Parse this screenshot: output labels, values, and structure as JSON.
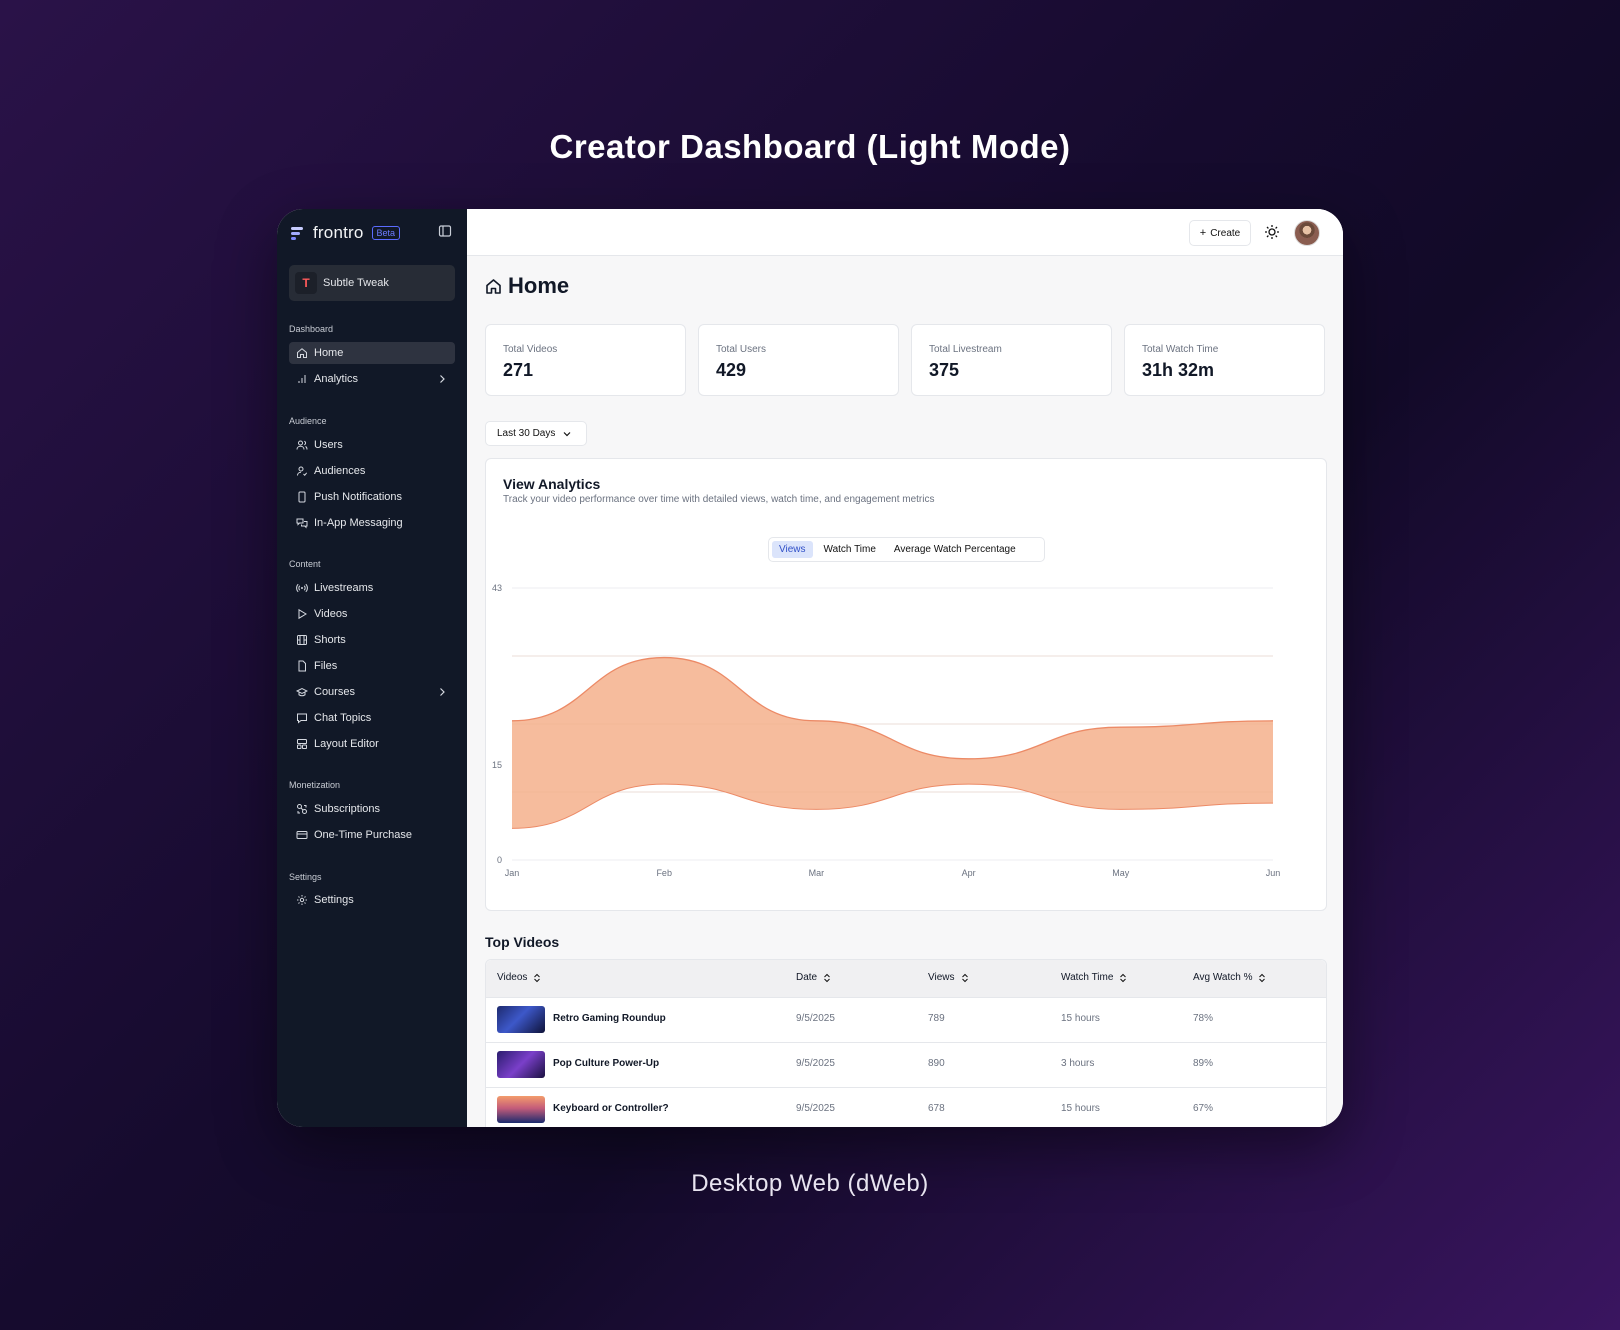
{
  "page": {
    "title": "Creator Dashboard (Light Mode)",
    "caption": "Desktop Web (dWeb)"
  },
  "sidebar": {
    "brand": "frontro",
    "beta": "Beta",
    "workspace": {
      "initial": "T",
      "name": "Subtle Tweak"
    },
    "sections": [
      {
        "label": "Dashboard",
        "items": [
          {
            "label": "Home",
            "icon": "home-icon",
            "active": true
          },
          {
            "label": "Analytics",
            "icon": "bar-chart-icon",
            "chevron": true
          }
        ]
      },
      {
        "label": "Audience",
        "items": [
          {
            "label": "Users",
            "icon": "users-icon"
          },
          {
            "label": "Audiences",
            "icon": "user-check-icon"
          },
          {
            "label": "Push Notifications",
            "icon": "phone-icon"
          },
          {
            "label": "In-App Messaging",
            "icon": "messages-icon"
          }
        ]
      },
      {
        "label": "Content",
        "items": [
          {
            "label": "Livestreams",
            "icon": "broadcast-icon"
          },
          {
            "label": "Videos",
            "icon": "play-icon"
          },
          {
            "label": "Shorts",
            "icon": "film-icon"
          },
          {
            "label": "Files",
            "icon": "file-icon"
          },
          {
            "label": "Courses",
            "icon": "graduation-cap-icon",
            "chevron": true
          },
          {
            "label": "Chat Topics",
            "icon": "chat-icon"
          },
          {
            "label": "Layout Editor",
            "icon": "layout-icon"
          }
        ]
      },
      {
        "label": "Monetization",
        "items": [
          {
            "label": "Subscriptions",
            "icon": "subscriptions-icon"
          },
          {
            "label": "One-Time Purchase",
            "icon": "credit-card-icon"
          }
        ]
      },
      {
        "label": "Settings",
        "items": [
          {
            "label": "Settings",
            "icon": "gear-icon"
          }
        ]
      }
    ]
  },
  "topbar": {
    "create_label": "Create"
  },
  "main": {
    "title": "Home",
    "stats": [
      {
        "label": "Total Videos",
        "value": "271"
      },
      {
        "label": "Total Users",
        "value": "429"
      },
      {
        "label": "Total Livestream",
        "value": "375"
      },
      {
        "label": "Total Watch Time",
        "value": "31h 32m"
      }
    ],
    "range": "Last 30 Days",
    "analytics": {
      "title": "View Analytics",
      "subtitle": "Track your video performance over time with detailed views, watch time, and engagement metrics",
      "tabs": [
        "Views",
        "Watch Time",
        "Average Watch Percentage"
      ],
      "active_tab": "Views"
    },
    "top_videos": {
      "title": "Top Videos",
      "columns": [
        "Videos",
        "Date",
        "Views",
        "Watch Time",
        "Avg Watch %"
      ],
      "rows": [
        {
          "title": "Retro Gaming Roundup",
          "date": "9/5/2025",
          "views": "789",
          "watch_time": "15 hours",
          "avg": "78%"
        },
        {
          "title": "Pop Culture Power-Up",
          "date": "9/5/2025",
          "views": "890",
          "watch_time": "3 hours",
          "avg": "89%"
        },
        {
          "title": "Keyboard or Controller?",
          "date": "9/5/2025",
          "views": "678",
          "watch_time": "15 hours",
          "avg": "67%"
        }
      ]
    }
  },
  "chart_data": {
    "type": "area",
    "title": "View Analytics",
    "categories": [
      "Jan",
      "Feb",
      "Mar",
      "Apr",
      "May",
      "Jun"
    ],
    "y_ticks": [
      0,
      15,
      43
    ],
    "ylim": [
      0,
      43
    ],
    "series": [
      {
        "values": [
          22,
          32,
          22,
          16,
          21,
          22
        ]
      },
      {
        "values": [
          5,
          12,
          8,
          12,
          8,
          9
        ]
      }
    ],
    "fill": "#f6b898",
    "stroke": "#ec8a66",
    "grid": true
  }
}
